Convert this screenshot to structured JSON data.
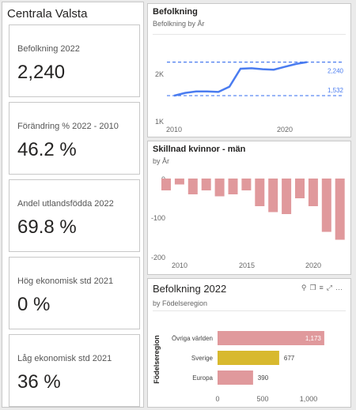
{
  "page_title": "Centrala Valsta",
  "cards": [
    {
      "label": "Befolkning 2022",
      "value": "2,240"
    },
    {
      "label": "Förändring % 2022 - 2010",
      "value": "46.2 %"
    },
    {
      "label": "Andel utlandsfödda 2022",
      "value": "69.8 %"
    },
    {
      "label": "Hög ekonomisk std 2021",
      "value": "0 %"
    },
    {
      "label": "Låg ekonomisk std 2021",
      "value": "36 %"
    }
  ],
  "line_chart": {
    "title": "Befolkning",
    "subtitle": "Befolkning by År",
    "y_ticks": [
      "2K",
      "1K"
    ],
    "x_ticks": [
      "2010",
      "2020"
    ],
    "ref_high_label": "2,240",
    "ref_low_label": "1,532",
    "line_color": "#4a7cf0"
  },
  "diff_chart": {
    "title": "Skillnad kvinnor - män",
    "subtitle": "by År",
    "y_ticks": [
      "0",
      "-100",
      "-200"
    ],
    "x_ticks": [
      "2010",
      "2015",
      "2020"
    ],
    "bar_color": "#e0999c"
  },
  "region_chart": {
    "title": "Befolkning 2022",
    "subtitle": "by Födelseregion",
    "axis_title": "Födelseregion",
    "x_ticks": [
      "0",
      "500",
      "1,000"
    ],
    "categories": [
      "Övriga världen",
      "Sverige",
      "Europa"
    ],
    "value_labels": [
      "1,173",
      "677",
      "390"
    ]
  },
  "chart_data": [
    {
      "type": "line",
      "title": "Befolkning",
      "subtitle": "Befolkning by År",
      "x": [
        2010,
        2011,
        2012,
        2013,
        2014,
        2015,
        2016,
        2017,
        2018,
        2019,
        2020,
        2021,
        2022
      ],
      "y": [
        1532,
        1590,
        1620,
        1620,
        1610,
        1720,
        2100,
        2110,
        2090,
        2080,
        2140,
        2200,
        2240
      ],
      "ylim": [
        1000,
        2400
      ],
      "ref_lines": [
        2240,
        1532
      ],
      "legend": "none",
      "color": "#4a7cf0"
    },
    {
      "type": "bar",
      "title": "Skillnad kvinnor - män",
      "subtitle": "by År",
      "categories": [
        "2009",
        "2010",
        "2011",
        "2012",
        "2013",
        "2014",
        "2015",
        "2016",
        "2017",
        "2018",
        "2019",
        "2020",
        "2021",
        "2022"
      ],
      "values": [
        -30,
        -15,
        -40,
        -30,
        -45,
        -40,
        -30,
        -70,
        -85,
        -90,
        -50,
        -70,
        -135,
        -155
      ],
      "ylim": [
        -200,
        0
      ],
      "color": "#e0999c"
    },
    {
      "type": "bar",
      "orientation": "horizontal",
      "title": "Befolkning 2022",
      "subtitle": "by Födelseregion",
      "ylabel": "Födelseregion",
      "categories": [
        "Övriga världen",
        "Sverige",
        "Europa"
      ],
      "values": [
        1173,
        677,
        390
      ],
      "colors": [
        "#e0999c",
        "#d8b92e",
        "#e0999c"
      ],
      "xlim": [
        0,
        1200
      ]
    }
  ]
}
